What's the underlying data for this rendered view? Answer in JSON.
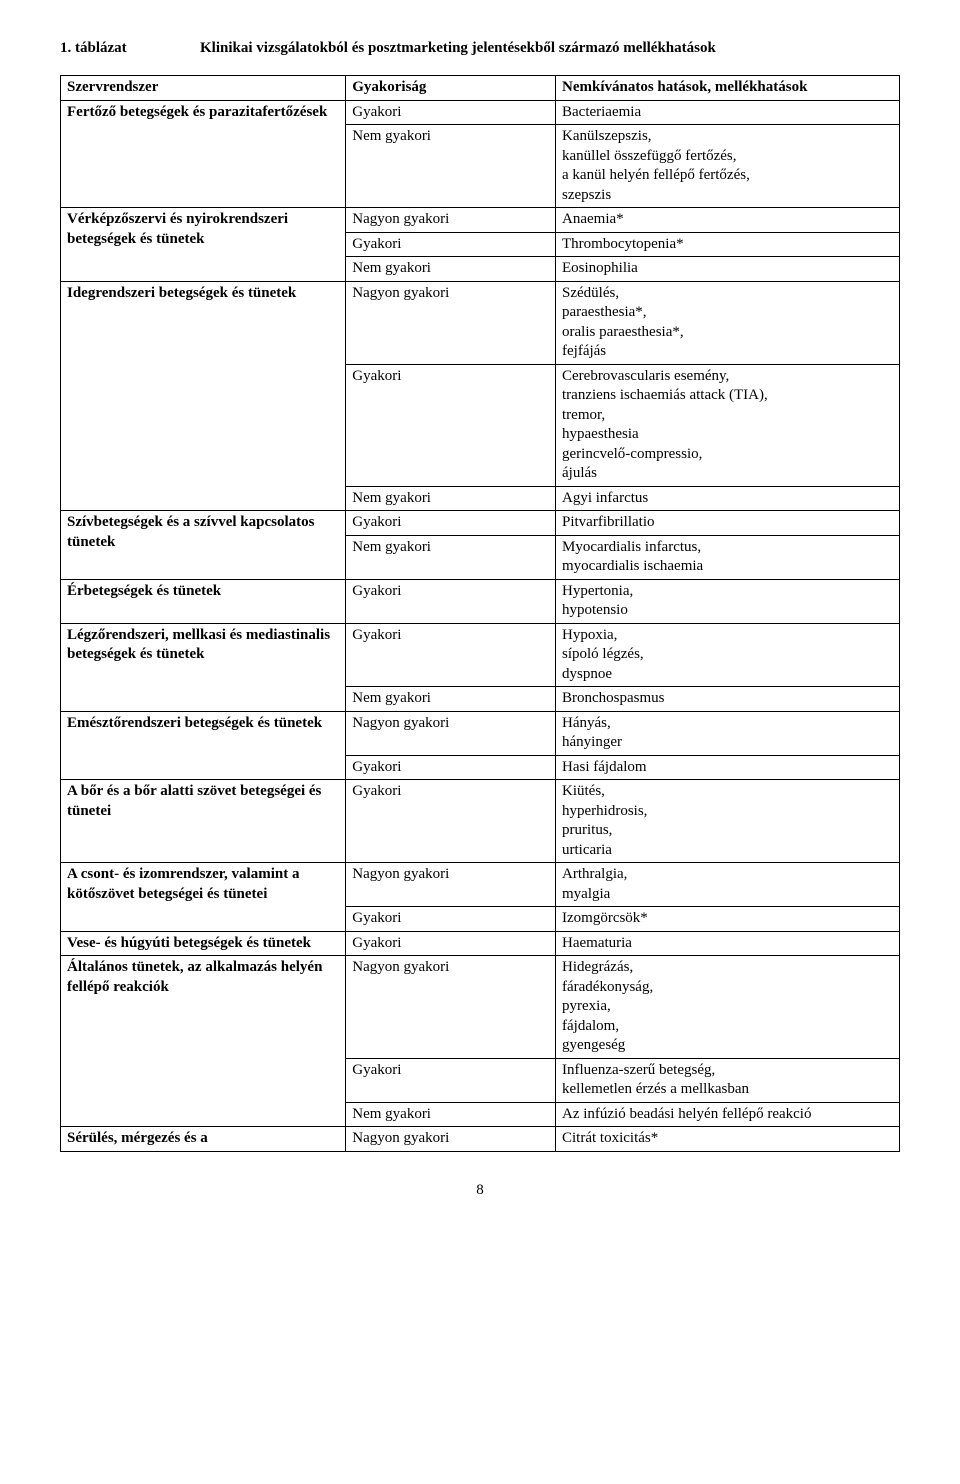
{
  "title_left": "1. táblázat",
  "title_right": "Klinikai vizsgálatokból és posztmarketing jelentésekből származó mellékhatások",
  "header": {
    "c1": "Szervrendszer",
    "c2": "Gyakoriság",
    "c3": "Nemkívánatos hatások, mellékhatások"
  },
  "groups": [
    {
      "system": "Fertőző betegségek és parazitafertőzések",
      "rows": [
        {
          "freq": "Gyakori",
          "effect": "Bacteriaemia"
        },
        {
          "freq": "Nem gyakori",
          "effect": "Kanülszepszis,\nkanüllel összefüggő fertőzés,\na kanül helyén fellépő fertőzés,\nszepszis"
        }
      ]
    },
    {
      "system": "Vérképzőszervi és nyirokrendszeri betegségek és tünetek",
      "rows": [
        {
          "freq": "Nagyon gyakori",
          "effect": "Anaemia*"
        },
        {
          "freq": "Gyakori",
          "effect": "Thrombocytopenia*"
        },
        {
          "freq": "Nem gyakori",
          "effect": "Eosinophilia"
        }
      ]
    },
    {
      "system": "Idegrendszeri betegségek és tünetek",
      "rows": [
        {
          "freq": "Nagyon gyakori",
          "effect": "Szédülés,\nparaesthesia*,\noralis paraesthesia*,\nfejfájás"
        },
        {
          "freq": "Gyakori",
          "effect": "Cerebrovascularis esemény,\ntranziens ischaemiás attack (TIA),\ntremor,\nhypaesthesia\ngerincvelő-compressio,\nájulás"
        },
        {
          "freq": "Nem gyakori",
          "effect": "Agyi infarctus"
        }
      ]
    },
    {
      "system": "Szívbetegségek és a szívvel kapcsolatos tünetek",
      "rows": [
        {
          "freq": "Gyakori",
          "effect": "Pitvarfibrillatio"
        },
        {
          "freq": "Nem gyakori",
          "effect": "Myocardialis infarctus,\nmyocardialis ischaemia"
        }
      ]
    },
    {
      "system": "Érbetegségek és tünetek",
      "rows": [
        {
          "freq": "Gyakori",
          "effect": "Hypertonia,\nhypotensio"
        }
      ]
    },
    {
      "system": "Légzőrendszeri, mellkasi és mediastinalis betegségek és tünetek",
      "rows": [
        {
          "freq": "Gyakori",
          "effect": "Hypoxia,\nsípoló légzés,\ndyspnoe"
        },
        {
          "freq": "Nem gyakori",
          "effect": "Bronchospasmus"
        }
      ]
    },
    {
      "system": "Emésztőrendszeri betegségek és tünetek",
      "rows": [
        {
          "freq": "Nagyon gyakori",
          "effect": "Hányás,\nhányinger"
        },
        {
          "freq": "Gyakori",
          "effect": "Hasi fájdalom"
        }
      ]
    },
    {
      "system": "A bőr és a bőr alatti szövet betegségei és tünetei",
      "rows": [
        {
          "freq": "Gyakori",
          "effect": "Kiütés,\nhyperhidrosis,\npruritus,\nurticaria"
        }
      ]
    },
    {
      "system": "A csont- és izomrendszer, valamint a kötőszövet betegségei és tünetei",
      "rows": [
        {
          "freq": "Nagyon gyakori",
          "effect": "Arthralgia,\nmyalgia"
        },
        {
          "freq": "Gyakori",
          "effect": "Izomgörcsök*"
        }
      ]
    },
    {
      "system": "Vese- és húgyúti betegségek és tünetek",
      "rows": [
        {
          "freq": "Gyakori",
          "effect": "Haematuria"
        }
      ]
    },
    {
      "system": "Általános tünetek, az alkalmazás helyén fellépő reakciók",
      "rows": [
        {
          "freq": "Nagyon gyakori",
          "effect": "Hidegrázás,\nfáradékonyság,\npyrexia,\nfájdalom,\ngyengeség"
        },
        {
          "freq": "Gyakori",
          "effect": "Influenza-szerű betegség,\nkellemetlen érzés a mellkasban"
        },
        {
          "freq": "Nem gyakori",
          "effect": "Az infúzió beadási helyén fellépő reakció"
        }
      ]
    },
    {
      "system": "Sérülés, mérgezés és a",
      "rows": [
        {
          "freq": "Nagyon gyakori",
          "effect": "Citrát toxicitás*"
        }
      ]
    }
  ],
  "page_number": "8"
}
